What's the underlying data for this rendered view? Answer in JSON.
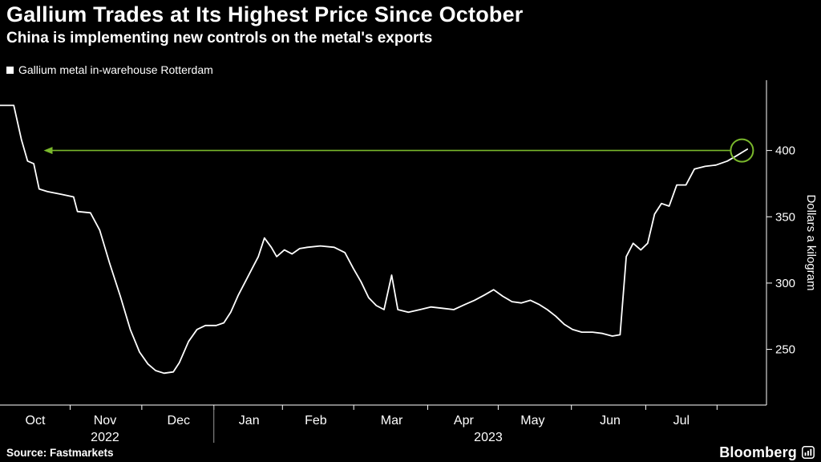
{
  "header": {
    "title": "Gallium Trades at Its Highest Price Since October",
    "subtitle": "China is implementing new controls on the metal's exports"
  },
  "legend": {
    "label": "Gallium metal in-warehouse Rotterdam",
    "marker_color": "#ffffff"
  },
  "footer": {
    "source": "Source: Fastmarkets",
    "brand": "Bloomberg"
  },
  "colors": {
    "background": "#000000",
    "foreground": "#ffffff",
    "line": "#ffffff",
    "accent_green": "#7ab82c"
  },
  "chart_data": {
    "type": "line",
    "title": "Gallium Trades at Its Highest Price Since October",
    "subtitle": "China is implementing new controls on the metal's exports",
    "ylabel": "Dollars a kilogram",
    "ylim": [
      208,
      453
    ],
    "y_ticks": [
      250,
      300,
      350,
      400
    ],
    "grid": false,
    "legend_position": "top-left",
    "x_axis": {
      "months": [
        {
          "label": "Oct",
          "x": 0.046
        },
        {
          "label": "Nov",
          "x": 0.137
        },
        {
          "label": "Dec",
          "x": 0.233
        },
        {
          "label": "Jan",
          "x": 0.325
        },
        {
          "label": "Feb",
          "x": 0.412
        },
        {
          "label": "Mar",
          "x": 0.511
        },
        {
          "label": "Apr",
          "x": 0.605
        },
        {
          "label": "May",
          "x": 0.695
        },
        {
          "label": "Jun",
          "x": 0.796
        },
        {
          "label": "Jul",
          "x": 0.889
        }
      ],
      "years": [
        {
          "label": "2022",
          "x": 0.137
        },
        {
          "label": "2023",
          "x": 0.637
        }
      ],
      "year_separator_x": 0.279,
      "end_boundary_x": 0.9355
    },
    "series": [
      {
        "name": "Gallium metal in-warehouse Rotterdam",
        "color": "#ffffff",
        "points": [
          [
            0.0,
            434
          ],
          [
            0.018,
            434
          ],
          [
            0.028,
            408
          ],
          [
            0.036,
            392
          ],
          [
            0.044,
            390
          ],
          [
            0.051,
            371
          ],
          [
            0.062,
            369
          ],
          [
            0.08,
            367
          ],
          [
            0.096,
            365
          ],
          [
            0.101,
            354
          ],
          [
            0.118,
            353
          ],
          [
            0.13,
            340
          ],
          [
            0.143,
            315
          ],
          [
            0.157,
            290
          ],
          [
            0.17,
            265
          ],
          [
            0.182,
            248
          ],
          [
            0.193,
            239
          ],
          [
            0.203,
            234
          ],
          [
            0.214,
            232
          ],
          [
            0.226,
            233
          ],
          [
            0.234,
            240
          ],
          [
            0.246,
            256
          ],
          [
            0.257,
            265
          ],
          [
            0.268,
            268
          ],
          [
            0.282,
            268
          ],
          [
            0.292,
            270
          ],
          [
            0.301,
            278
          ],
          [
            0.311,
            291
          ],
          [
            0.32,
            301
          ],
          [
            0.329,
            311
          ],
          [
            0.337,
            320
          ],
          [
            0.345,
            334
          ],
          [
            0.354,
            327
          ],
          [
            0.361,
            320
          ],
          [
            0.371,
            325
          ],
          [
            0.381,
            322
          ],
          [
            0.391,
            326
          ],
          [
            0.401,
            327
          ],
          [
            0.418,
            328
          ],
          [
            0.436,
            327
          ],
          [
            0.45,
            323
          ],
          [
            0.461,
            311
          ],
          [
            0.471,
            301
          ],
          [
            0.481,
            289
          ],
          [
            0.491,
            283
          ],
          [
            0.501,
            280
          ],
          [
            0.511,
            306
          ],
          [
            0.519,
            280
          ],
          [
            0.533,
            278
          ],
          [
            0.548,
            280
          ],
          [
            0.562,
            282
          ],
          [
            0.577,
            281
          ],
          [
            0.592,
            280
          ],
          [
            0.607,
            284
          ],
          [
            0.619,
            287
          ],
          [
            0.632,
            291
          ],
          [
            0.644,
            295
          ],
          [
            0.656,
            290
          ],
          [
            0.668,
            286
          ],
          [
            0.68,
            285
          ],
          [
            0.692,
            287
          ],
          [
            0.703,
            284
          ],
          [
            0.714,
            280
          ],
          [
            0.725,
            275
          ],
          [
            0.736,
            269
          ],
          [
            0.747,
            265
          ],
          [
            0.759,
            263
          ],
          [
            0.773,
            263
          ],
          [
            0.786,
            262
          ],
          [
            0.799,
            260
          ],
          [
            0.809,
            261
          ],
          [
            0.817,
            320
          ],
          [
            0.826,
            330
          ],
          [
            0.836,
            325
          ],
          [
            0.845,
            330
          ],
          [
            0.854,
            352
          ],
          [
            0.863,
            360
          ],
          [
            0.873,
            358
          ],
          [
            0.883,
            374
          ],
          [
            0.895,
            374
          ],
          [
            0.906,
            386
          ],
          [
            0.92,
            388
          ],
          [
            0.934,
            389
          ],
          [
            0.949,
            392
          ],
          [
            0.961,
            396
          ],
          [
            0.975,
            401
          ]
        ]
      }
    ],
    "annotation": {
      "type": "left-arrow-highlight",
      "value": 400,
      "x_from": 0.953,
      "x_to": 0.057,
      "color": "#7ab82c",
      "circle": {
        "x": 0.968,
        "value": 400,
        "r": 14
      }
    }
  }
}
